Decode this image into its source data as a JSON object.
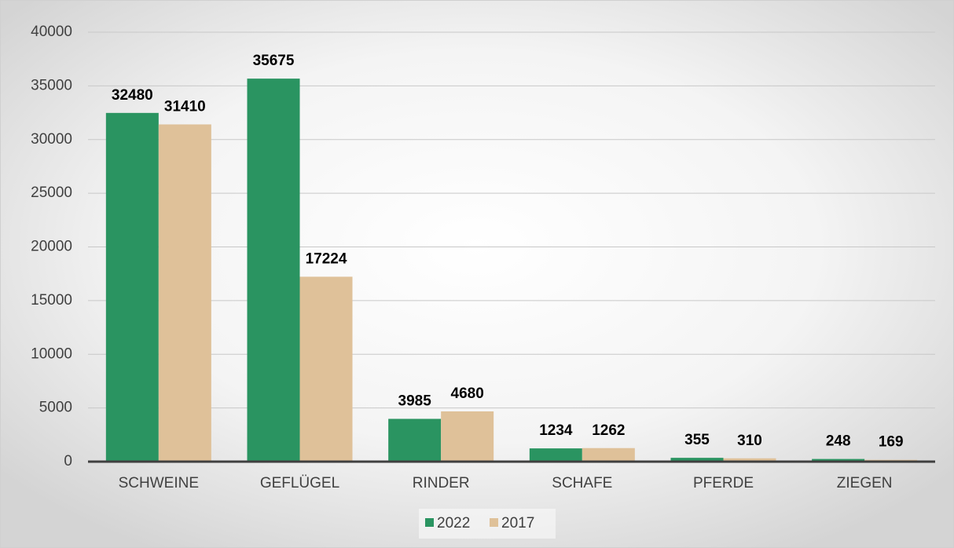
{
  "chart_data": {
    "type": "bar",
    "categories": [
      "SCHWEINE",
      "GEFLÜGEL",
      "RINDER",
      "SCHAFE",
      "PFERDE",
      "ZIEGEN"
    ],
    "series": [
      {
        "name": "2022",
        "color": "#2a9461",
        "values": [
          32480,
          35675,
          3985,
          1234,
          355,
          248
        ]
      },
      {
        "name": "2017",
        "color": "#dfc199",
        "values": [
          31410,
          17224,
          4680,
          1262,
          310,
          169
        ]
      }
    ],
    "ylim": [
      0,
      40000
    ],
    "yticks": [
      0,
      5000,
      10000,
      15000,
      20000,
      25000,
      30000,
      35000,
      40000
    ],
    "grid": true,
    "legend": "bottom"
  }
}
